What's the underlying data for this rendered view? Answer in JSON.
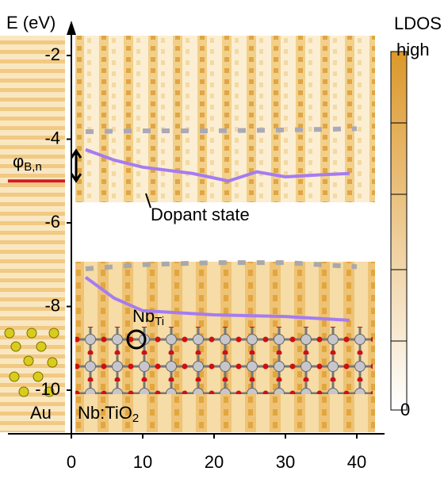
{
  "chart_data": {
    "type": "line",
    "y_label": "E (eV)",
    "xlim": [
      -10,
      43
    ],
    "ylim": [
      -11,
      -1.2
    ],
    "xticks": [
      0,
      10,
      20,
      30,
      40
    ],
    "yticks": [
      -2,
      -4,
      -6,
      -8,
      -10
    ],
    "series": [
      {
        "color": "#a57cf0",
        "dashed": false,
        "x": [
          2,
          6,
          10,
          17,
          22,
          26,
          30,
          35,
          39
        ],
        "values": [
          -4.25,
          -4.5,
          -4.67,
          -4.82,
          -5.0,
          -4.78,
          -4.9,
          -4.85,
          -4.82
        ]
      },
      {
        "color": "#a57cf0",
        "dashed": false,
        "x": [
          2,
          6,
          10,
          20,
          30,
          39
        ],
        "values": [
          -7.3,
          -7.8,
          -8.1,
          -8.2,
          -8.24,
          -8.33
        ]
      },
      {
        "color": "#a9a9b8",
        "dashed": true,
        "x": [
          2,
          10,
          20,
          30,
          40
        ],
        "values": [
          -3.82,
          -3.8,
          -3.8,
          -3.78,
          -3.75
        ]
      },
      {
        "color": "#a9a9a9",
        "dashed": true,
        "x": [
          2,
          10,
          20,
          30,
          40
        ],
        "values": [
          -7.1,
          -7.0,
          -6.95,
          -6.95,
          -7.05
        ]
      }
    ],
    "reference_line": {
      "y": -5,
      "color": "#d41c1c"
    },
    "colorbar": {
      "label": "LDOS",
      "high_label": "high",
      "low_label": "0"
    },
    "annotations": {
      "barrier": {
        "main": "φ",
        "sub": "B,n"
      },
      "dopant": "Dopant state",
      "nb_site": {
        "main": "Nb",
        "sub": "Ti"
      },
      "metal": "Au",
      "oxide": {
        "main": "Nb:TiO",
        "sub": "2"
      }
    }
  }
}
